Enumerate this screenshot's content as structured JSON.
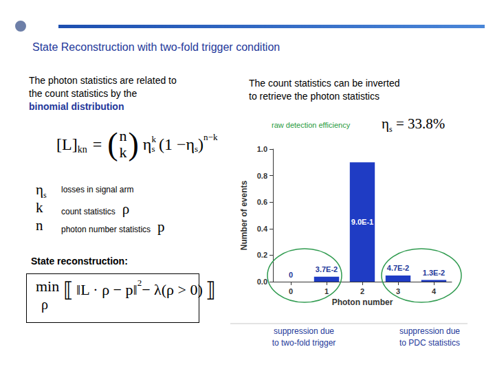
{
  "slide": {
    "title": "State Reconstruction with two-fold trigger condition",
    "intro": [
      "The photon statistics are related to",
      "the count statistics by the"
    ],
    "intro_emphasis": "binomial distribution",
    "formula": {
      "lhs": "[L]",
      "lhs_sub": "kn",
      "eq": "=",
      "binom_brackets": [
        "(",
        ")"
      ],
      "binom": [
        "n",
        "k"
      ],
      "eta": "η",
      "eta_sub": "s",
      "exp_k": "k",
      "open": "(1 − ",
      "close": ")",
      "exp_nk": "n−k"
    },
    "symbols": [
      {
        "symbol": "η",
        "sub": "s",
        "text": "losses in signal arm"
      },
      {
        "symbol": "k",
        "text": "count statistics",
        "var": "ρ"
      },
      {
        "symbol": "n",
        "text": "photon number statistics",
        "var": "p"
      }
    ],
    "reconstruction_label": "State reconstruction:",
    "objective": {
      "op": "min",
      "under": "ρ",
      "open": "⟦",
      "body": "‖L · ρ − p‖",
      "power": "2",
      "rest": " − λ(ρ > 0)",
      "close": "⟧"
    },
    "inverse_text": [
      "The count statistics can be inverted",
      "to retrieve the photon statistics"
    ],
    "efficiency_label": "raw detection efficiency",
    "efficiency": {
      "symbol": "η",
      "sub": "s",
      "text": " = 33.8%"
    },
    "annotations": [
      {
        "lines": [
          "suppression due",
          "to two-fold trigger"
        ]
      },
      {
        "lines": [
          "suppression due",
          "to PDC statistics"
        ]
      }
    ]
  },
  "chart_data": {
    "type": "bar",
    "categories": [
      "0",
      "1",
      "2",
      "3",
      "4"
    ],
    "values": [
      0,
      0.037,
      0.9,
      0.047,
      0.013
    ],
    "value_labels": [
      "0",
      "3.7E-2",
      "9.0E-1",
      "4.7E-2",
      "1.3E-2"
    ],
    "data_labels": true,
    "color": "#1f3cc4",
    "xlabel": "Photon number",
    "ylabel": "Number of events",
    "ylim": [
      0,
      1
    ],
    "yticks": [
      {
        "value": 0,
        "label": "0.0"
      },
      0.2,
      0.4,
      0.6,
      0.8,
      {
        "value": 1,
        "label": "1.0"
      }
    ],
    "grid": false
  }
}
